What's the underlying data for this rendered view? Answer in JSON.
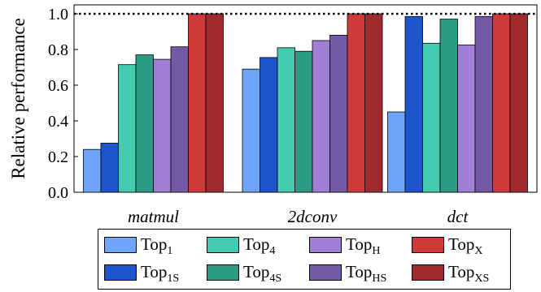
{
  "chart_data": {
    "type": "bar",
    "ylabel": "Relative performance",
    "ylim": [
      0,
      1.05
    ],
    "yticks": [
      "0.0",
      "0.2",
      "0.4",
      "0.6",
      "0.8",
      "1.0"
    ],
    "reference_line": 1.0,
    "grid": false,
    "legend_position": "bottom",
    "categories": [
      "matmul",
      "2dconv",
      "dct"
    ],
    "series": [
      {
        "name": "Top1",
        "base": "Top",
        "sub": "1",
        "color": "#6ea4f9",
        "values": [
          0.24,
          0.69,
          0.45
        ]
      },
      {
        "name": "Top1S",
        "base": "Top",
        "sub": "1S",
        "color": "#1f55cc",
        "values": [
          0.275,
          0.755,
          0.985
        ]
      },
      {
        "name": "Top4",
        "base": "Top",
        "sub": "4",
        "color": "#44ccb0",
        "values": [
          0.715,
          0.81,
          0.835
        ]
      },
      {
        "name": "Top4S",
        "base": "Top",
        "sub": "4S",
        "color": "#2c9b84",
        "values": [
          0.77,
          0.79,
          0.97
        ]
      },
      {
        "name": "TopH",
        "base": "Top",
        "sub": "H",
        "color": "#9f80d4",
        "values": [
          0.745,
          0.85,
          0.825
        ]
      },
      {
        "name": "TopHS",
        "base": "Top",
        "sub": "HS",
        "color": "#7459a6",
        "values": [
          0.815,
          0.88,
          0.985
        ]
      },
      {
        "name": "TopX",
        "base": "Top",
        "sub": "X",
        "color": "#cf3b3b",
        "values": [
          1.0,
          1.0,
          1.0
        ]
      },
      {
        "name": "TopXS",
        "base": "Top",
        "sub": "XS",
        "color": "#a02a2e",
        "values": [
          1.0,
          1.0,
          1.0
        ]
      }
    ]
  }
}
